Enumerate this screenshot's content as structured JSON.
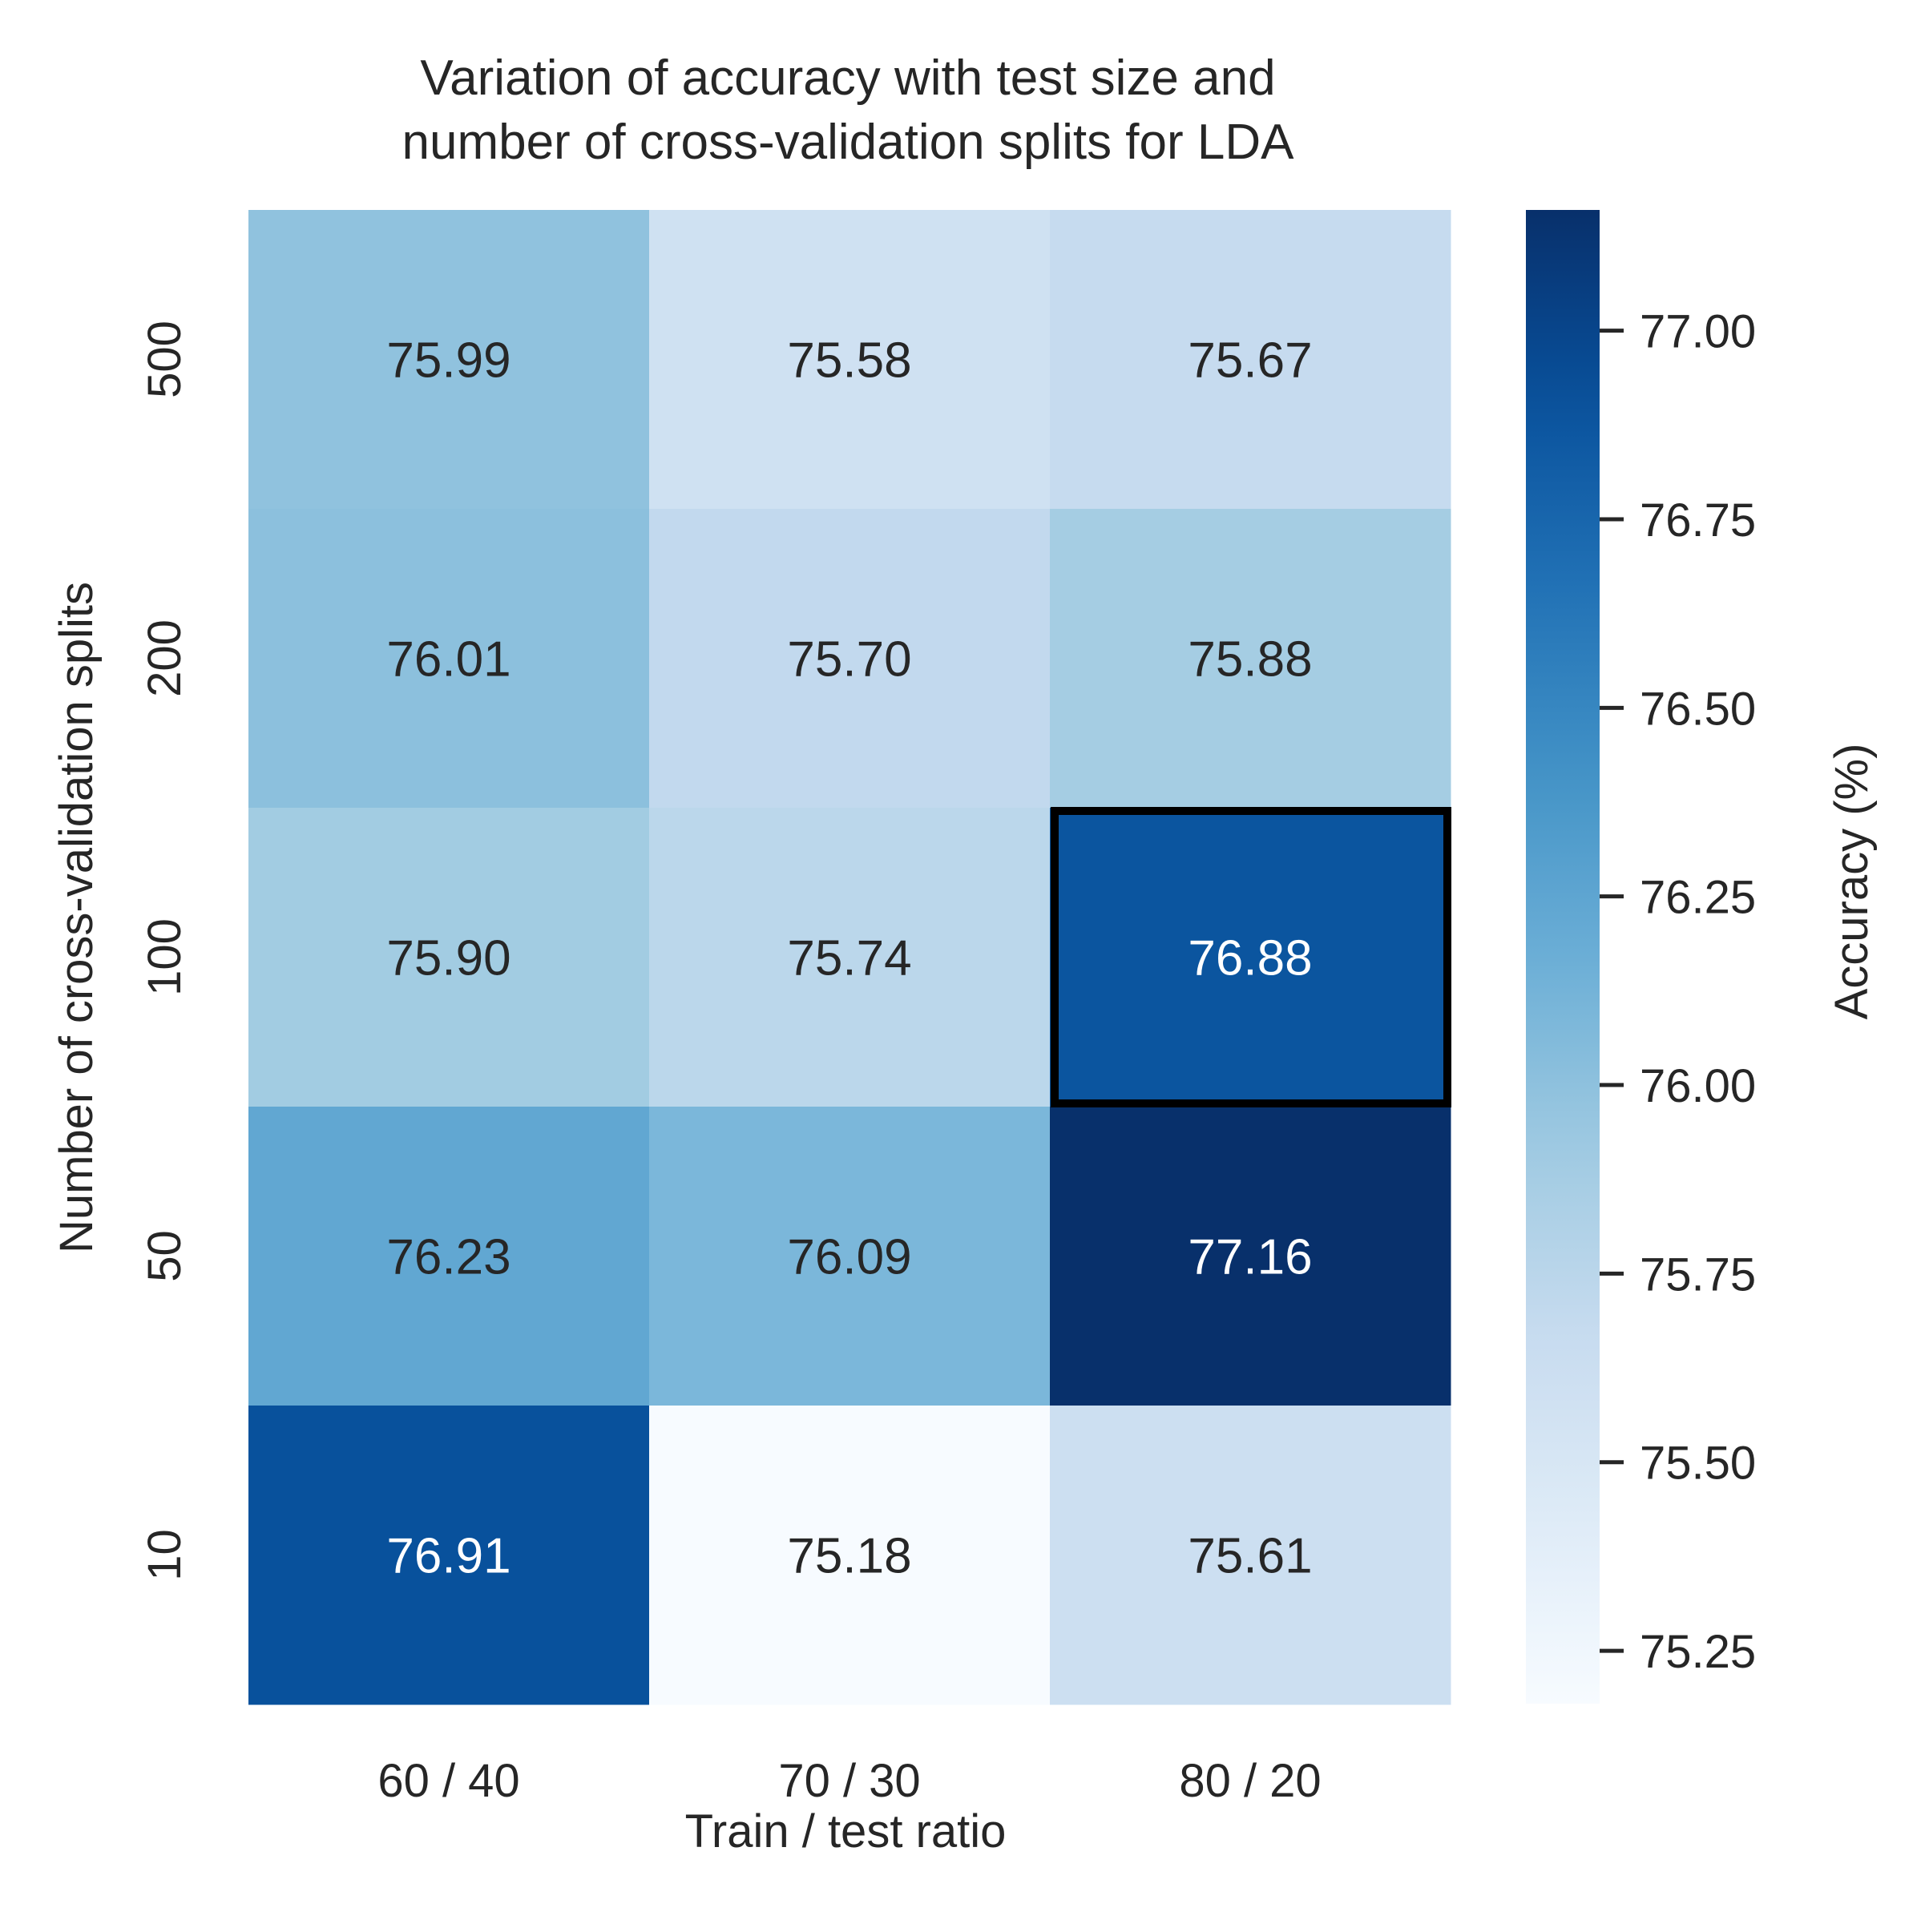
{
  "chart_data": {
    "type": "heatmap",
    "title": "Variation of accuracy with test size and\nnumber of cross-validation splits for LDA",
    "xlabel": "Train / test ratio",
    "ylabel": "Number of cross-validation splits",
    "colorbar_label": "Accuracy (%)",
    "x_categories": [
      "60 / 40",
      "70 / 30",
      "80 / 20"
    ],
    "y_categories": [
      "500",
      "200",
      "100",
      "50",
      "10"
    ],
    "values": [
      [
        75.99,
        75.58,
        75.67
      ],
      [
        76.01,
        75.7,
        75.88
      ],
      [
        75.9,
        75.74,
        76.88
      ],
      [
        76.23,
        76.09,
        77.16
      ],
      [
        76.91,
        75.18,
        75.61
      ]
    ],
    "value_format": "0.00",
    "colormap": "Blues",
    "color_range": [
      75.18,
      77.16
    ],
    "colorbar_ticks": [
      75.25,
      75.5,
      75.75,
      76.0,
      76.25,
      76.5,
      76.75,
      77.0
    ],
    "highlighted_cell": {
      "row": "100",
      "col": "80 / 20"
    },
    "grid": false,
    "legend": "colorbar-right"
  }
}
